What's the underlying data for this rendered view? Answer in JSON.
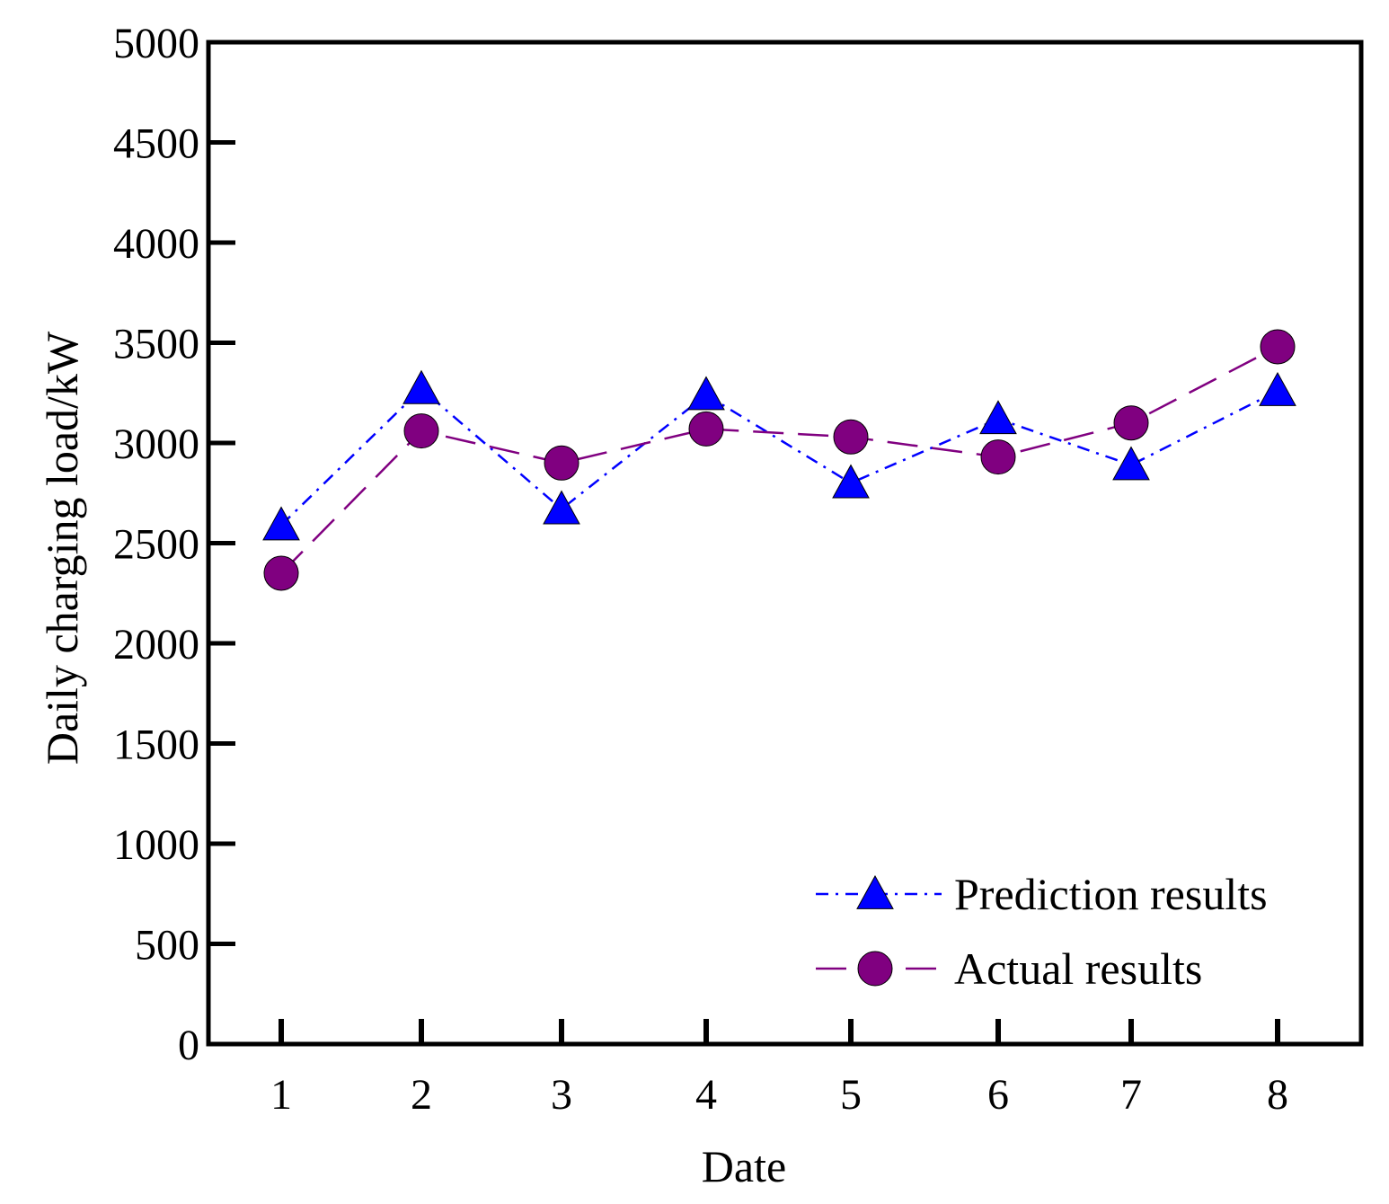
{
  "chart_data": {
    "type": "line",
    "title": "",
    "xlabel": "Date",
    "ylabel": "Daily charging load/kW",
    "x": [
      1,
      2,
      3,
      4,
      5,
      6,
      7,
      8
    ],
    "x_tick_labels": [
      "1",
      "2",
      "3",
      "4",
      "5",
      "6",
      "7",
      "8"
    ],
    "ylim": [
      0,
      5000
    ],
    "y_ticks": [
      0,
      500,
      1000,
      1500,
      2000,
      2500,
      3000,
      3500,
      4000,
      4500,
      5000
    ],
    "y_tick_labels": [
      "0",
      "500",
      "1000",
      "1500",
      "2000",
      "2500",
      "3000",
      "3500",
      "4000",
      "4500",
      "5000"
    ],
    "grid": false,
    "legend_position": "bottom-right",
    "series": [
      {
        "name": "Prediction results",
        "values": [
          2590,
          3270,
          2670,
          3240,
          2800,
          3120,
          2890,
          3260
        ],
        "color": "#0000ff",
        "marker": "triangle",
        "line_style": "dash-dot"
      },
      {
        "name": "Actual results",
        "values": [
          2350,
          3060,
          2900,
          3070,
          3030,
          2930,
          3100,
          3480
        ],
        "color": "#800080",
        "marker": "circle",
        "line_style": "long-dash"
      }
    ]
  }
}
